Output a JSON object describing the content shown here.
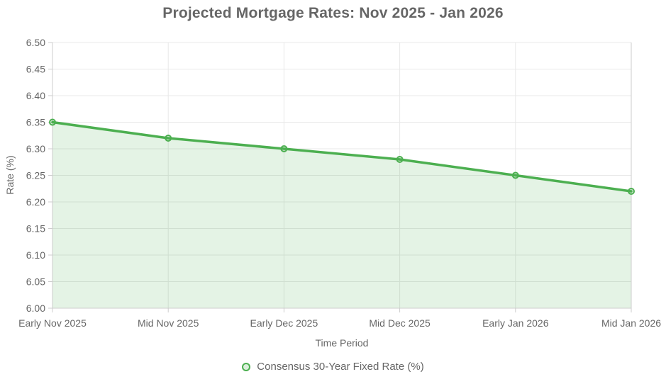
{
  "title": "Projected Mortgage Rates: Nov 2025 - Jan 2026",
  "chart_data": {
    "type": "area",
    "categories": [
      "Early Nov 2025",
      "Mid Nov 2025",
      "Early Dec 2025",
      "Mid Dec 2025",
      "Early Jan 2026",
      "Mid Jan 2026"
    ],
    "series": [
      {
        "name": "Consensus 30-Year Fixed Rate (%)",
        "values": [
          6.35,
          6.32,
          6.3,
          6.28,
          6.25,
          6.22
        ]
      }
    ],
    "xlabel": "Time Period",
    "ylabel": "Rate (%)",
    "ylim": [
      6.0,
      6.5
    ],
    "ytick_step": 0.05,
    "ytick_decimals": 2,
    "grid": true,
    "legend_position": "bottom",
    "colors": {
      "line": "#4caf50",
      "area_fill": "rgba(76,175,80,0.15)",
      "point_fill": "rgba(76,175,80,0.2)",
      "point_stroke": "#4caf50",
      "grid_line": "#e8e8e8",
      "axis_border": "#cccccc",
      "text": "#666666",
      "title_text": "#666666"
    }
  }
}
